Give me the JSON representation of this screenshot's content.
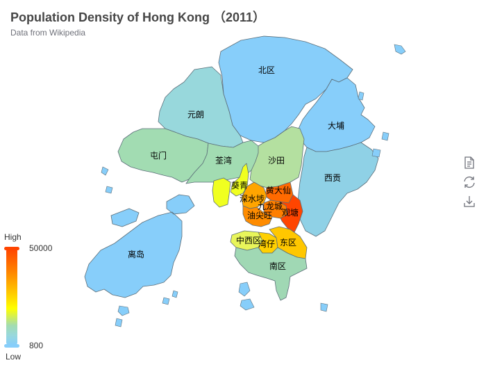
{
  "title": "Population Density of Hong Kong （2011）",
  "subtitle": "Data from Wikipedia",
  "visual_map": {
    "high_text": "High",
    "low_text": "Low",
    "max_value": "50000",
    "min_value": "800",
    "colors": [
      "#ff4500",
      "#ff7f00",
      "#ffd700",
      "#ffff00",
      "#a2dcb2",
      "#98d8dc",
      "#87cefa"
    ]
  },
  "toolbox": [
    {
      "name": "data-view-icon"
    },
    {
      "name": "restore-icon"
    },
    {
      "name": "save-as-image-icon"
    }
  ],
  "map_data": {
    "type": "choropleth",
    "regions": [
      {
        "name": "北区",
        "fill": "#87cefa"
      },
      {
        "name": "大埔",
        "fill": "#87cefa"
      },
      {
        "name": "元朗",
        "fill": "#98d8dc"
      },
      {
        "name": "屯门",
        "fill": "#a2dcb2"
      },
      {
        "name": "荃湾",
        "fill": "#a2dcb2"
      },
      {
        "name": "沙田",
        "fill": "#b4e0a0"
      },
      {
        "name": "西贡",
        "fill": "#8fd1e6"
      },
      {
        "name": "葵青",
        "fill": "#f0ff20"
      },
      {
        "name": "离岛",
        "fill": "#87cefa"
      },
      {
        "name": "黄大仙",
        "fill": "#ff6a00"
      },
      {
        "name": "深水埗",
        "fill": "#ffa500"
      },
      {
        "name": "九龙城",
        "fill": "#ff7f00"
      },
      {
        "name": "油尖旺",
        "fill": "#ff8c00"
      },
      {
        "name": "观塘",
        "fill": "#ff4500"
      },
      {
        "name": "中西区",
        "fill": "#e8f55a"
      },
      {
        "name": "湾仔",
        "fill": "#ffd000"
      },
      {
        "name": "东区",
        "fill": "#ffc700"
      },
      {
        "name": "南区",
        "fill": "#a0d8b4"
      }
    ]
  }
}
